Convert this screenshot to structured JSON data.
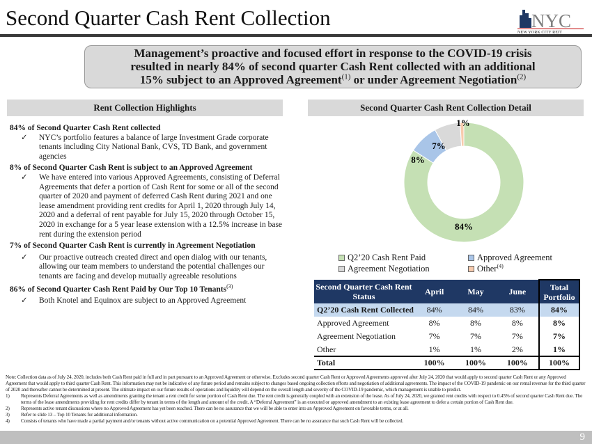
{
  "title": "Second Quarter Cash Rent Collection",
  "logo": {
    "text": "NYC",
    "subtext": "NEW YORK CITY REIT"
  },
  "callout": {
    "line1": "Management’s proactive and focused effort in response to the COVID-19 crisis",
    "line2": "resulted in nearly 84% of second quarter Cash Rent collected with an additional",
    "line3": "15% subject to an Approved Agreement",
    "sup1": "(1)",
    "line3b": " or under Agreement Negotiation",
    "sup2": "(2)"
  },
  "left": {
    "header": "Rent Collection Highlights",
    "sections": [
      {
        "heading": "84% of Second Quarter Cash Rent collected",
        "bullet": "NYC’s portfolio features a balance of large Investment Grade corporate tenants including City National Bank, CVS, TD Bank, and government agencies"
      },
      {
        "heading": "8% of Second Quarter Cash Rent is subject to an Approved Agreement",
        "bullet": "We have entered into various Approved Agreements, consisting of Deferral Agreements that defer a portion of Cash Rent for some or all of the second quarter of 2020 and payment of deferred Cash Rent during 2021 and one lease amendment providing rent credits for April 1, 2020 through July 14, 2020 and a deferral of rent payable for July 15, 2020 through October 15, 2020 in exchange for a 5 year lease extension with a 12.5% increase in base rent during the extension period"
      },
      {
        "heading": "7% of Second Quarter Cash Rent is currently in Agreement Negotiation",
        "bullet": "Our proactive outreach created direct and open dialog with our tenants, allowing our team members to understand the potential challenges our tenants are facing and develop mutually agreeable resolutions"
      },
      {
        "heading": "86% of Second Quarter Cash Rent Paid by Our Top 10 Tenants",
        "sup": "(3)",
        "bullet": "Both Knotel and Equinox are subject to an Approved Agreement"
      }
    ],
    "check": "✓"
  },
  "right": {
    "header": "Second Quarter Cash Rent Collection Detail"
  },
  "chart_data": {
    "type": "pie",
    "donut": true,
    "series": [
      {
        "name": "Q2’20 Cash Rent Paid",
        "value": 84,
        "label": "84%",
        "color": "#c5e0b4"
      },
      {
        "name": "Approved Agreement",
        "value": 8,
        "label": "8%",
        "color": "#a9c5e8"
      },
      {
        "name": "Agreement Negotiation",
        "value": 7,
        "label": "7%",
        "color": "#d9d9d9"
      },
      {
        "name": "Other",
        "sup": "(4)",
        "value": 1,
        "label": "1%",
        "color": "#f8cbad"
      }
    ],
    "legend": "bottom"
  },
  "table": {
    "headers": [
      "Second Quarter Cash Rent Status",
      "April",
      "May",
      "June",
      "Total Portfolio"
    ],
    "rows": [
      [
        "Q2’20 Cash Rent Collected",
        "84%",
        "84%",
        "83%",
        "84%"
      ],
      [
        "Approved Agreement",
        "8%",
        "8%",
        "8%",
        "8%"
      ],
      [
        "Agreement Negotiation",
        "7%",
        "7%",
        "7%",
        "7%"
      ],
      [
        "Other",
        "1%",
        "1%",
        "2%",
        "1%"
      ],
      [
        "Total",
        "100%",
        "100%",
        "100%",
        "100%"
      ]
    ]
  },
  "notes": {
    "main": "Note: Collection data as of July 24, 2020, includes both Cash Rent paid in full and in part pursuant to an Approved Agreement or otherwise. Excludes second quarter Cash Rent or Approved Agreements approved after July 24, 2020 that would apply to second quarter Cash Rent or any Approved Agreement that would apply to third quarter Cash Rent. This information may not be indicative of any future period and remains subject to changes based ongoing collection efforts and negotiation of additional agreements. The impact of the COVID-19 pandemic on our rental revenue for the third quarter of 2020 and thereafter cannot be determined at present. The ultimate impact on our future results of operations and liquidity will depend on the overall length and severity of the COVID-19 pandemic, which management is unable to predict.",
    "items": [
      {
        "num": "1)",
        "text": "Represents Deferral Agreements as well as amendments granting the tenant a rent credit for some portion of Cash Rent due. The rent credit is generally coupled with an extension of the lease. As of July 24, 2020, we granted rent credits with respect to 0.45% of second quarter Cash Rent due. The terms of the lease amendments providing for rent credits differ by tenant in terms of the length and amount of the credit. A “Deferral Agreement” is an executed or approved amendment to an existing lease agreement to defer a certain portion of Cash Rent due."
      },
      {
        "num": "2)",
        "text": "Represents active tenant discussions where no Approved Agreement has yet been reached. There can be no assurance that we will be able to enter into an Approved Agreement on favorable terms, or at all."
      },
      {
        "num": "3)",
        "text": "Refer to slide 13 – Top 10 Tenants for additional information."
      },
      {
        "num": "4)",
        "text": "Consists of tenants who have made a partial payment and/or tenants without active communication on a potential Approved Agreement. There can be no assurance that such Cash Rent will be collected."
      }
    ]
  },
  "footer": {
    "page": "9"
  }
}
